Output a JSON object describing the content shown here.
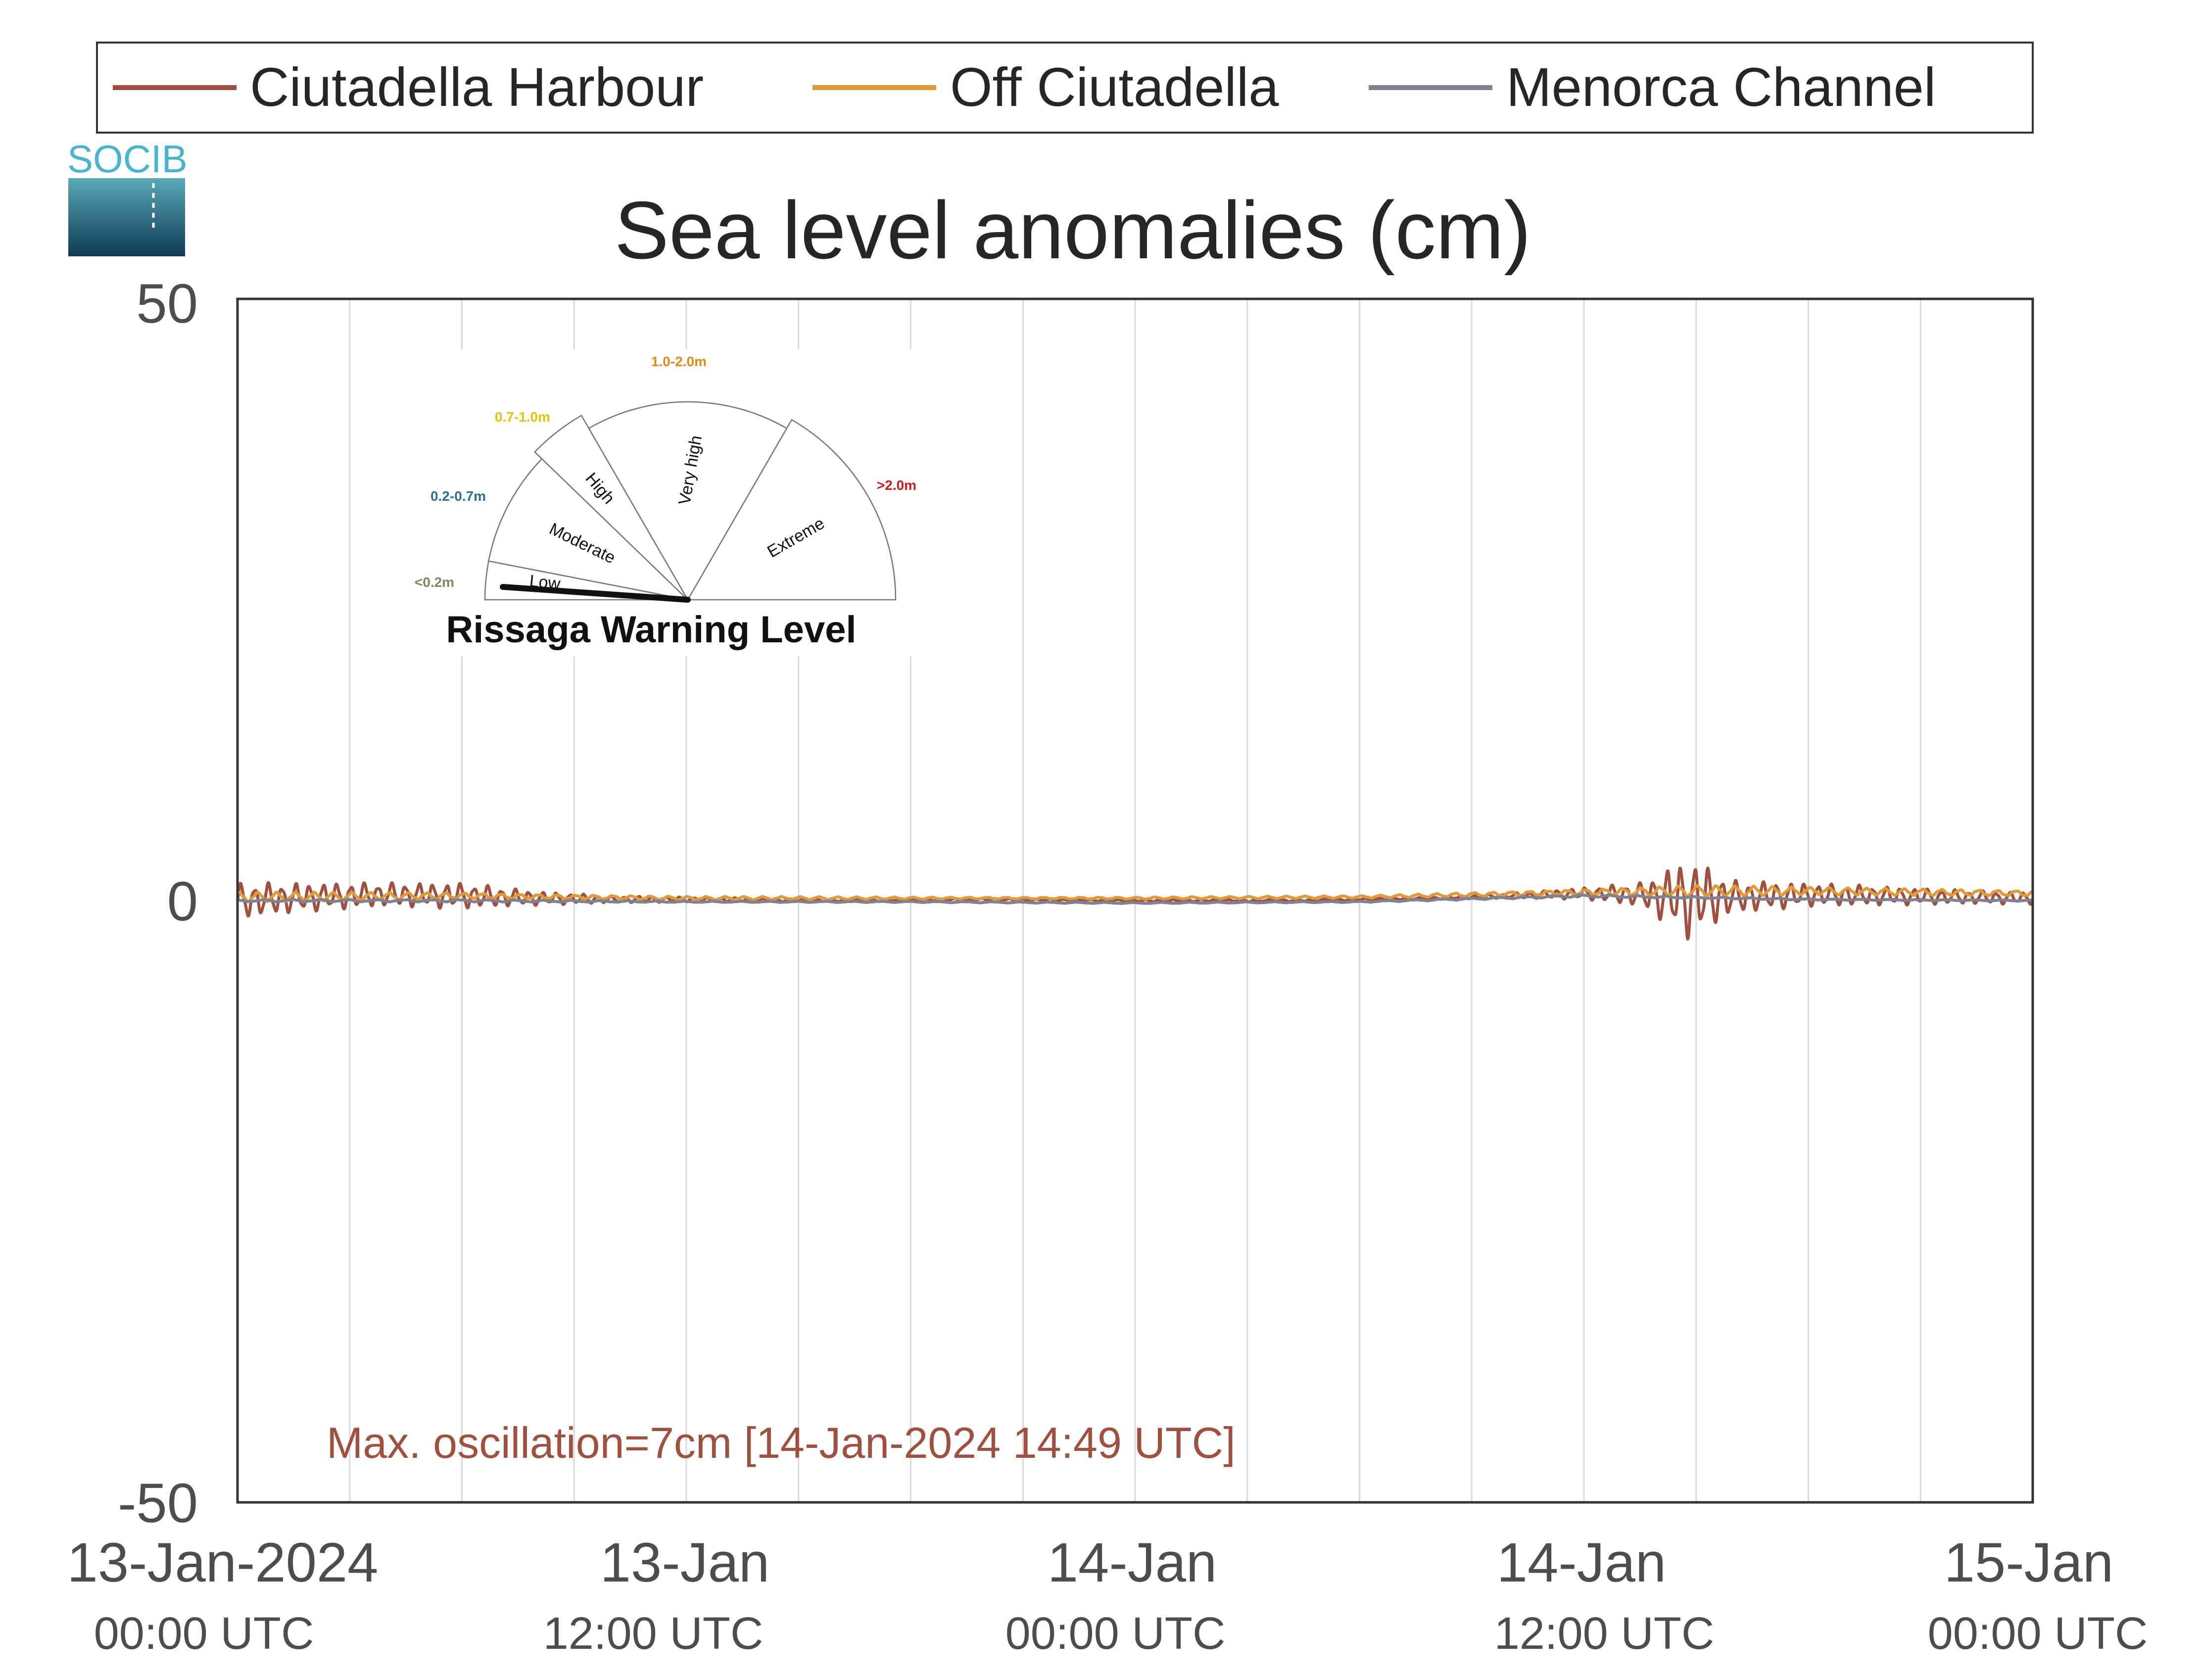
{
  "logo": {
    "text": "SOCIB"
  },
  "chart_data": {
    "type": "line",
    "title": "Sea level anomalies (cm)",
    "xlabel": "",
    "ylabel": "",
    "ylim": [
      -50,
      50
    ],
    "yticks": [
      "50",
      "0",
      "-50"
    ],
    "xlim": [
      "2024-01-13 00:00",
      "2024-01-15 00:00"
    ],
    "xticks": [
      {
        "t": "2024-01-13 00:00",
        "label": "13-Jan-2024",
        "sub": "00:00 UTC"
      },
      {
        "t": "2024-01-13 12:00",
        "label": "13-Jan",
        "sub": "12:00 UTC"
      },
      {
        "t": "2024-01-14 00:00",
        "label": "14-Jan",
        "sub": "00:00 UTC"
      },
      {
        "t": "2024-01-14 12:00",
        "label": "14-Jan",
        "sub": "12:00 UTC"
      },
      {
        "t": "2024-01-15 00:00",
        "label": "15-Jan",
        "sub": "00:00 UTC"
      }
    ],
    "grid": "vertical, every 3 hours",
    "legend_position": "top",
    "series": [
      {
        "name": "Ciutadella Harbour",
        "color": "#a0503e",
        "x": [
          "2024-01-13 00:00",
          "2024-01-13 02:00",
          "2024-01-13 04:00",
          "2024-01-13 06:00",
          "2024-01-13 08:00",
          "2024-01-13 10:00",
          "2024-01-13 12:00",
          "2024-01-13 16:00",
          "2024-01-13 20:00",
          "2024-01-14 00:00",
          "2024-01-14 04:00",
          "2024-01-14 08:00",
          "2024-01-14 10:00",
          "2024-01-14 12:00",
          "2024-01-14 13:30",
          "2024-01-14 14:49",
          "2024-01-14 16:00",
          "2024-01-14 18:00",
          "2024-01-14 20:00",
          "2024-01-14 22:00",
          "2024-01-15 00:00"
        ],
        "y": [
          0.0,
          0.3,
          0.5,
          0.4,
          0.2,
          0.1,
          0.1,
          0.0,
          0.1,
          0.0,
          0.0,
          0.2,
          0.4,
          0.6,
          0.5,
          0.2,
          0.3,
          0.5,
          0.4,
          0.3,
          0.2
        ],
        "oscillation_amplitude": [
          1.5,
          1.2,
          1.0,
          1.1,
          0.6,
          0.3,
          0.2,
          0.1,
          0.1,
          0.1,
          0.1,
          0.1,
          0.2,
          0.5,
          1.0,
          3.5,
          1.4,
          1.0,
          0.8,
          0.6,
          0.5
        ]
      },
      {
        "name": "Off Ciutadella",
        "color": "#e09a3a",
        "x": [
          "2024-01-13 00:00",
          "2024-01-13 06:00",
          "2024-01-13 12:00",
          "2024-01-13 18:00",
          "2024-01-14 00:00",
          "2024-01-14 06:00",
          "2024-01-14 12:00",
          "2024-01-14 15:00",
          "2024-01-14 18:00",
          "2024-01-15 00:00"
        ],
        "y": [
          0.3,
          0.4,
          0.2,
          0.2,
          0.2,
          0.3,
          0.7,
          0.8,
          0.8,
          0.6
        ],
        "oscillation_amplitude": [
          0.4,
          0.3,
          0.15,
          0.1,
          0.1,
          0.1,
          0.3,
          0.5,
          0.3,
          0.3
        ]
      },
      {
        "name": "Menorca Channel",
        "color": "#7f8194",
        "x": [
          "2024-01-13 00:00",
          "2024-01-13 06:00",
          "2024-01-13 12:00",
          "2024-01-13 18:00",
          "2024-01-14 00:00",
          "2024-01-14 06:00",
          "2024-01-14 12:00",
          "2024-01-14 18:00",
          "2024-01-15 00:00"
        ],
        "y": [
          0.0,
          0.0,
          -0.1,
          -0.1,
          -0.2,
          -0.1,
          0.4,
          0.1,
          0.0
        ],
        "oscillation_amplitude": [
          0.1,
          0.1,
          0.05,
          0.05,
          0.05,
          0.05,
          0.1,
          0.05,
          0.05
        ]
      }
    ],
    "annotations": [
      {
        "text": "Max. oscillation=7cm [14-Jan-2024 14:49 UTC]",
        "color": "#a0503e"
      }
    ]
  },
  "warning_gauge": {
    "title": "Rissaga Warning Level",
    "current_level": "Low",
    "levels": [
      {
        "name": "Low",
        "range": "<0.2m",
        "color": "#7a8a5a"
      },
      {
        "name": "Moderate",
        "range": "0.2-0.7m",
        "color": "#2e6e8e"
      },
      {
        "name": "High",
        "range": "0.7-1.0m",
        "color": "#e6c300"
      },
      {
        "name": "Very high",
        "range": "1.0-2.0m",
        "color": "#e08a1a"
      },
      {
        "name": "Extreme",
        "range": ">2.0m",
        "color": "#d01c1c"
      }
    ]
  }
}
